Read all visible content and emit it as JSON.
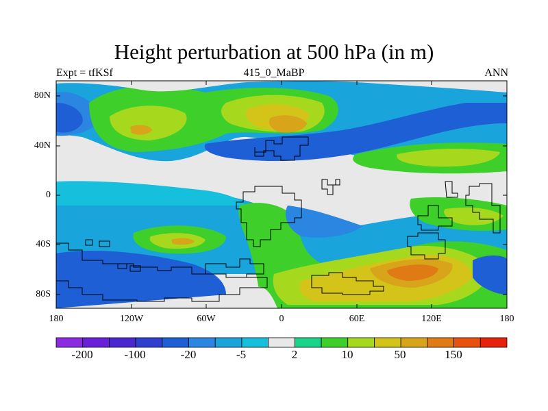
{
  "title": "Height perturbation at 500 hPa (in m)",
  "subtitle_left": "Expt = tfKSf",
  "subtitle_center": "415_0_MaBP",
  "subtitle_right": "ANN",
  "lat_ticks": [
    "80N",
    "40N",
    "0",
    "40S",
    "80S"
  ],
  "lon_ticks": [
    "180",
    "120W",
    "60W",
    "0",
    "60E",
    "120E",
    "180"
  ],
  "colorbar": {
    "labels": [
      "-200",
      "-100",
      "-20",
      "-5",
      "2",
      "10",
      "50",
      "150"
    ],
    "colors": [
      "#8a2be2",
      "#6a1fd8",
      "#4a28cf",
      "#2f3fd0",
      "#1e5fd6",
      "#2a86e0",
      "#1aa4dc",
      "#16c0dc",
      "#e8e8e8",
      "#1ad48a",
      "#3ecf2a",
      "#a6d81e",
      "#d4c41a",
      "#d8a41a",
      "#e07a14",
      "#e8500e",
      "#e8200e"
    ]
  },
  "palette": {
    "neutral": "#e8e8e8",
    "teal": "#1ad48a",
    "lightgreen": "#3ecf2a",
    "yellowgreen": "#a6d81e",
    "yellow": "#d4c41a",
    "orange": "#d8a41a",
    "darkorange": "#e07a14",
    "cyan": "#16c0dc",
    "lightblue": "#1aa4dc",
    "blue": "#2a86e0",
    "darkblue": "#1e5fd6"
  }
}
